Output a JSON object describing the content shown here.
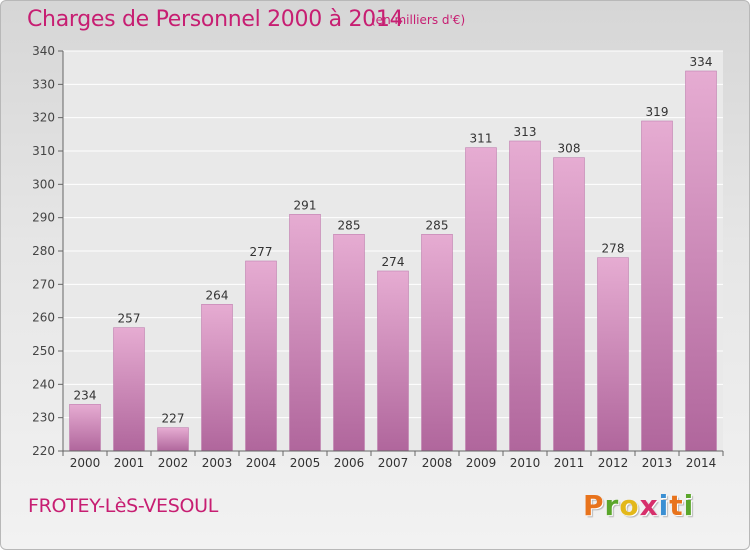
{
  "header": {
    "title": "Charges de Personnel 2000 à 2014",
    "subtitle": "(en milliers d'€)"
  },
  "footer": {
    "commune": "FROTEY-LèS-VESOUL",
    "logo_letters": [
      "P",
      "r",
      "o",
      "x",
      "i",
      "t",
      "i"
    ],
    "logo_colors": [
      "#e8731c",
      "#5aa62b",
      "#e3b81a",
      "#d62f6b",
      "#3a8fd3",
      "#e8731c",
      "#5aa62b"
    ]
  },
  "colors": {
    "title": "#c71e72",
    "bar_top": "#e6acd2",
    "bar_bottom": "#b0669c",
    "bar_edge": "#c080b0"
  },
  "chart_data": {
    "type": "bar",
    "title": "Charges de Personnel 2000 à 2014",
    "subtitle": "(en milliers d'€)",
    "xlabel": "",
    "ylabel": "",
    "categories": [
      "2000",
      "2001",
      "2002",
      "2003",
      "2004",
      "2005",
      "2006",
      "2007",
      "2008",
      "2009",
      "2010",
      "2011",
      "2012",
      "2013",
      "2014"
    ],
    "values": [
      234,
      257,
      227,
      264,
      277,
      291,
      285,
      274,
      285,
      311,
      313,
      308,
      278,
      319,
      334
    ],
    "ylim": [
      220,
      340
    ],
    "yticks": [
      220,
      230,
      240,
      250,
      260,
      270,
      280,
      290,
      300,
      310,
      320,
      330,
      340
    ],
    "grid": true,
    "legend": "none"
  }
}
